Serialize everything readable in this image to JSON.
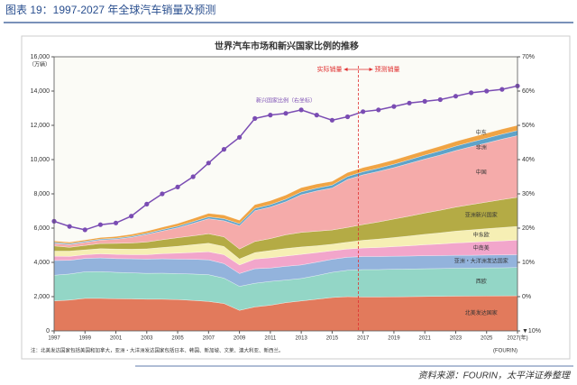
{
  "header": {
    "title": "图表 19：1997-2027 年全球汽车销量及预测"
  },
  "chart_data": {
    "type": "area",
    "title": "世界汽车市场和新兴国家比例的推移",
    "y_label": "（万辆）",
    "x": [
      1997,
      1998,
      1999,
      2000,
      2001,
      2002,
      2003,
      2004,
      2005,
      2006,
      2007,
      2008,
      2009,
      2010,
      2011,
      2012,
      2013,
      2014,
      2015,
      2016,
      2017,
      2018,
      2019,
      2020,
      2021,
      2022,
      2023,
      2024,
      2025,
      2026,
      2027
    ],
    "xlim": [
      1997,
      2027
    ],
    "xticks": [
      1997,
      1999,
      2001,
      2003,
      2005,
      2007,
      2009,
      2011,
      2013,
      2015,
      2017,
      2019,
      2021,
      2023,
      2025,
      {
        "value": 2027,
        "label": "2027(年)"
      }
    ],
    "ylim": [
      0,
      16000
    ],
    "yticks": [
      0,
      {
        "value": 2000,
        "label": "2,000"
      },
      {
        "value": 4000,
        "label": "4,000"
      },
      {
        "value": 6000,
        "label": "6,000"
      },
      {
        "value": 8000,
        "label": "8,000"
      },
      {
        "value": 10000,
        "label": "10,000"
      },
      {
        "value": 12000,
        "label": "12,000"
      },
      {
        "value": 14000,
        "label": "14,000"
      },
      {
        "value": 16000,
        "label": "16,000"
      }
    ],
    "y2lim": [
      -10,
      70
    ],
    "y2ticks": [
      {
        "value": -10,
        "label": "▼10%"
      },
      {
        "value": 0,
        "label": "0%"
      },
      {
        "value": 10,
        "label": "10%"
      },
      {
        "value": 20,
        "label": "20%"
      },
      {
        "value": 30,
        "label": "30%"
      },
      {
        "value": 40,
        "label": "40%"
      },
      {
        "value": 50,
        "label": "50%"
      },
      {
        "value": 60,
        "label": "60%"
      },
      {
        "value": 70,
        "label": "70%"
      }
    ],
    "stacked": true,
    "grid": false,
    "series": [
      {
        "name": "北美发达国家",
        "color": "#e27a5c",
        "values": [
          1750,
          1800,
          1900,
          1900,
          1880,
          1870,
          1850,
          1850,
          1830,
          1780,
          1720,
          1600,
          1200,
          1400,
          1500,
          1650,
          1750,
          1850,
          1950,
          2000,
          1980,
          1980,
          1990,
          2000,
          2010,
          2020,
          2030,
          2035,
          2040,
          2045,
          2050
        ]
      },
      {
        "name": "西欧",
        "color": "#93d6c6",
        "values": [
          1500,
          1520,
          1550,
          1560,
          1540,
          1520,
          1510,
          1520,
          1510,
          1540,
          1560,
          1480,
          1400,
          1380,
          1390,
          1320,
          1310,
          1380,
          1470,
          1540,
          1600,
          1600,
          1610,
          1610,
          1620,
          1620,
          1630,
          1630,
          1640,
          1640,
          1650
        ]
      },
      {
        "name": "亚洲・大洋洲发达国家",
        "color": "#93b3dc",
        "values": [
          860,
          800,
          780,
          800,
          800,
          820,
          830,
          840,
          850,
          860,
          870,
          850,
          750,
          850,
          780,
          800,
          790,
          780,
          760,
          760,
          760,
          760,
          760,
          760,
          760,
          755,
          755,
          750,
          750,
          750,
          750
        ]
      },
      {
        "name": "中南美",
        "color": "#f2a6cb",
        "values": [
          250,
          230,
          220,
          240,
          250,
          240,
          260,
          300,
          350,
          400,
          470,
          520,
          500,
          560,
          600,
          600,
          620,
          560,
          500,
          480,
          500,
          530,
          560,
          600,
          640,
          680,
          720,
          760,
          790,
          820,
          850
        ]
      },
      {
        "name": "中东欧",
        "color": "#f6efb4",
        "values": [
          300,
          310,
          280,
          300,
          310,
          320,
          340,
          360,
          400,
          450,
          500,
          480,
          350,
          380,
          420,
          440,
          430,
          400,
          380,
          400,
          450,
          490,
          530,
          570,
          610,
          650,
          690,
          720,
          750,
          780,
          800
        ]
      },
      {
        "name": "亚洲新兴国家",
        "color": "#b4ab45",
        "values": [
          300,
          220,
          260,
          300,
          330,
          360,
          400,
          450,
          500,
          520,
          550,
          560,
          580,
          650,
          700,
          800,
          850,
          850,
          830,
          860,
          920,
          1000,
          1080,
          1160,
          1240,
          1320,
          1400,
          1480,
          1550,
          1630,
          1700
        ]
      },
      {
        "name": "中国",
        "color": "#f5abaa",
        "values": [
          150,
          160,
          180,
          200,
          240,
          330,
          440,
          510,
          580,
          730,
          880,
          940,
          1360,
          1800,
          1840,
          1930,
          2200,
          2350,
          2450,
          2800,
          2900,
          2950,
          3000,
          3080,
          3150,
          3220,
          3300,
          3380,
          3450,
          3530,
          3600
        ]
      },
      {
        "name": "非洲",
        "color": "#5ea3c9",
        "values": [
          60,
          60,
          60,
          60,
          60,
          65,
          70,
          80,
          90,
          100,
          110,
          120,
          120,
          130,
          140,
          150,
          160,
          165,
          170,
          175,
          180,
          190,
          200,
          215,
          230,
          245,
          260,
          270,
          280,
          290,
          300
        ]
      },
      {
        "name": "中东",
        "color": "#f0a444",
        "values": [
          80,
          80,
          80,
          90,
          100,
          110,
          120,
          140,
          160,
          180,
          200,
          210,
          200,
          220,
          230,
          240,
          250,
          240,
          220,
          230,
          240,
          245,
          250,
          255,
          260,
          270,
          275,
          280,
          290,
          295,
          300
        ]
      },
      {
        "name": "新兴国家比例（右坐标）",
        "type": "line",
        "axis": "y2",
        "color": "#7a4cb3",
        "values": [
          22,
          20.5,
          19.5,
          21,
          21.5,
          23.5,
          27,
          30,
          32,
          35,
          39,
          43,
          46.5,
          52,
          53,
          53.5,
          54.5,
          53,
          51.5,
          52.5,
          54,
          54.5,
          55.5,
          56.5,
          57,
          57.5,
          58.5,
          59.5,
          60,
          60.5,
          61.5
        ]
      }
    ],
    "forecast_divider": 2016.7,
    "annotations": {
      "actual": "实际销量",
      "forecast": "预测销量"
    },
    "note": "注：北美发达国家包括美国和加拿大，亚洲・大洋洲发达国家包括日本、韩国、新加坡、文莱、澳大利亚、新西兰。",
    "credit": "(FOURIN)"
  },
  "footer": {
    "source": "资料来源：FOURIN，太平洋证券整理"
  }
}
